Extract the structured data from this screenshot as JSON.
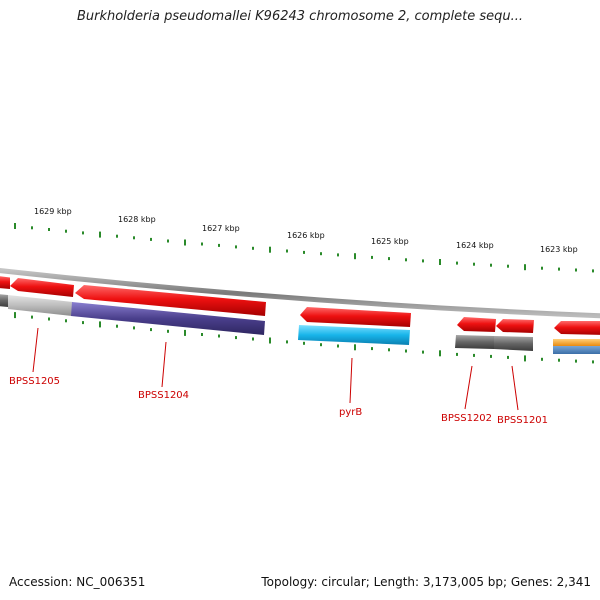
{
  "title": "Burkholderia pseudomallei K96243 chromosome 2, complete sequ...",
  "scale_ticks": [
    "1629 kbp",
    "1628 kbp",
    "1627 kbp",
    "1626 kbp",
    "1625 kbp",
    "1624 kbp",
    "1623 kbp"
  ],
  "genes": [
    "BPSS1205",
    "BPSS1204",
    "pyrB",
    "BPSS1202",
    "BPSS1201"
  ],
  "footer": {
    "accession": "Accession: NC_006351",
    "summary": "Topology: circular; Length: 3,173,005 bp; Genes: 2,341"
  },
  "colors": {
    "backbone": "#8c8c8c",
    "forward_gene": "#ee1111",
    "feature_purple": "#4a3f8c",
    "feature_cyan": "#1ab8ea",
    "feature_gray": "#666666",
    "feature_orange": "#f2a020",
    "tick_green": "#2a8a2a",
    "label_red": "#cc0000"
  }
}
